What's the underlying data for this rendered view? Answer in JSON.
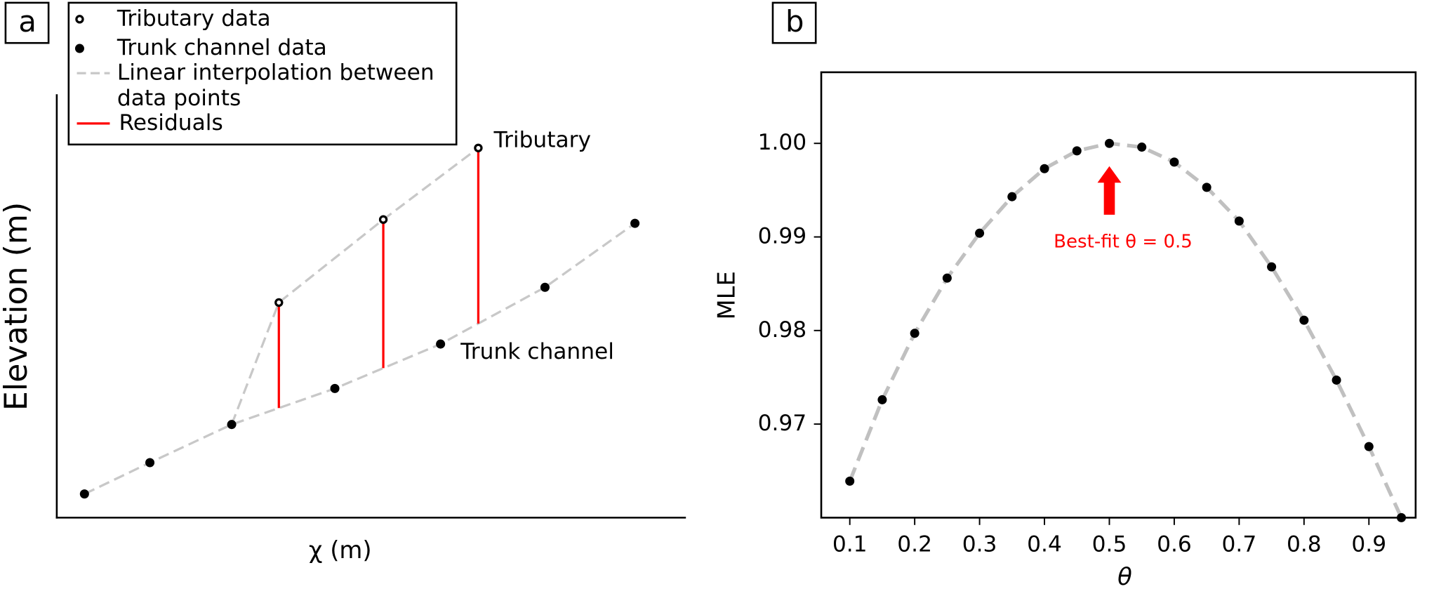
{
  "chart_data": [
    {
      "type": "line",
      "panel_label": "a",
      "xlabel": "χ (m)",
      "ylabel": "Elevation (m)",
      "xlim": [
        0,
        100
      ],
      "ylim": [
        0,
        100
      ],
      "series": [
        {
          "name": "Tributary data",
          "label": "Tributary",
          "marker": "open",
          "color": "#000000",
          "x": [
            35.3,
            51.9,
            67.0
          ],
          "values": [
            50.8,
            70.4,
            87.3
          ]
        },
        {
          "name": "Trunk channel data",
          "label": "Trunk channel",
          "marker": "filled",
          "color": "#000000",
          "x": [
            4.4,
            14.8,
            27.8,
            44.2,
            61.0,
            77.6,
            91.9
          ],
          "values": [
            5.6,
            13.0,
            22.0,
            30.5,
            41.0,
            54.4,
            69.5
          ]
        }
      ],
      "interpolation": {
        "name": "Linear interpolation between data points",
        "color": "#c8c8c8"
      },
      "residuals": {
        "name": "Residuals",
        "color": "#ff0000"
      }
    },
    {
      "type": "line",
      "panel_label": "b",
      "xlabel": "θ",
      "ylabel": "MLE",
      "color": "#c0c0c0",
      "x": [
        0.1,
        0.15,
        0.2,
        0.25,
        0.3,
        0.35,
        0.4,
        0.45,
        0.5,
        0.55,
        0.6,
        0.65,
        0.7,
        0.75,
        0.8,
        0.85,
        0.9,
        0.95
      ],
      "values": [
        0.9639,
        0.9726,
        0.9797,
        0.9856,
        0.9904,
        0.9943,
        0.9973,
        0.9992,
        1.0,
        0.9996,
        0.998,
        0.9953,
        0.9917,
        0.9868,
        0.9811,
        0.9747,
        0.9676,
        0.96
      ],
      "xlim": [
        0.056,
        0.972
      ],
      "ylim": [
        0.96,
        1.0076
      ],
      "xticks": [
        0.1,
        0.2,
        0.3,
        0.4,
        0.5,
        0.6,
        0.7,
        0.8,
        0.9
      ],
      "yticks": [
        0.97,
        0.98,
        0.99,
        {
          "value": 1,
          "label": "1.00"
        }
      ],
      "annotation": {
        "text": "Best-fit θ = 0.5",
        "x": 0.5,
        "color": "#ff0000"
      }
    }
  ]
}
